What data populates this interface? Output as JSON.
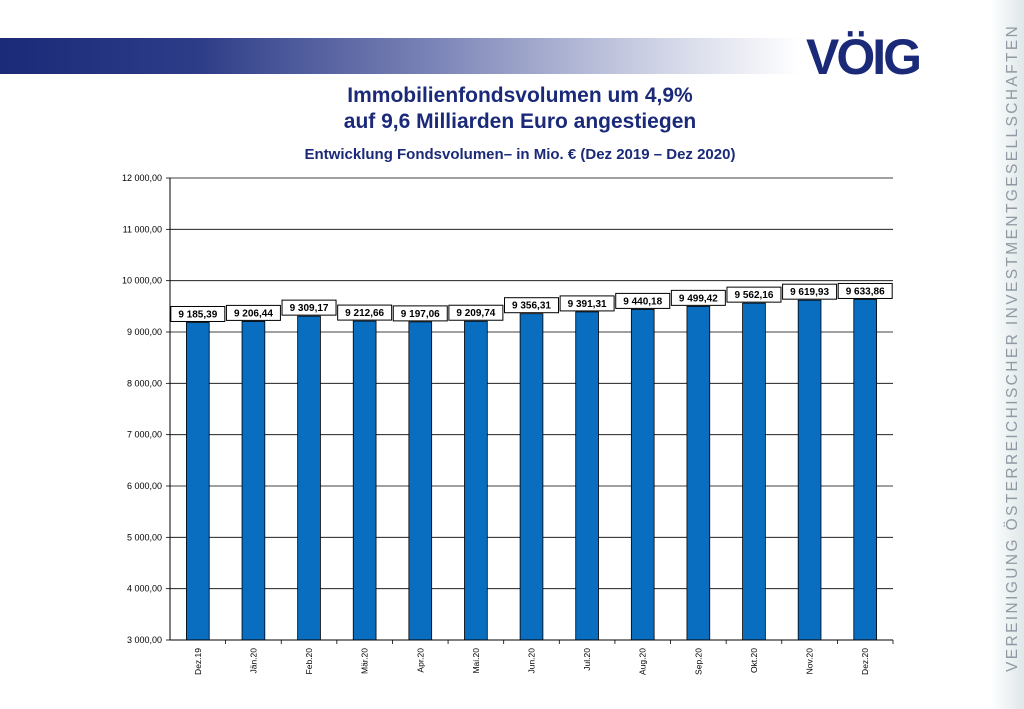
{
  "logo": {
    "text": "VÖIG"
  },
  "sidebar": {
    "text": "VEREINIGUNG ÖSTERREICHISCHER INVESTMENTGESELLSCHAFTEN"
  },
  "title": {
    "line1": "Immobilienfondsvolumen um 4,9%",
    "line2": "auf 9,6 Milliarden Euro angestiegen",
    "subtitle": "Entwicklung Fondsvolumen– in Mio. € (Dez 2019 – Dez 2020)"
  },
  "colors": {
    "bar": "#0a6ec0",
    "header_band": "#1b2a78",
    "logo": "#1b2a78",
    "title": "#1b2a78"
  },
  "chart_data": {
    "type": "bar",
    "categories": [
      "Dez.19",
      "Jän.20",
      "Feb.20",
      "Mär.20",
      "Apr.20",
      "Mai.20",
      "Jun.20",
      "Jul.20",
      "Aug.20",
      "Sep.20",
      "Okt.20",
      "Nov.20",
      "Dez.20"
    ],
    "values": [
      9185.39,
      9206.44,
      9309.17,
      9212.66,
      9197.06,
      9209.74,
      9356.31,
      9391.31,
      9440.18,
      9499.42,
      9562.16,
      9619.93,
      9633.86
    ],
    "value_labels": [
      "9 185,39",
      "9 206,44",
      "9 309,17",
      "9 212,66",
      "9 197,06",
      "9 209,74",
      "9 356,31",
      "9 391,31",
      "9 440,18",
      "9 499,42",
      "9 562,16",
      "9 619,93",
      "9 633,86"
    ],
    "ylim": [
      3000,
      12000
    ],
    "yticks": [
      3000,
      4000,
      5000,
      6000,
      7000,
      8000,
      9000,
      10000,
      11000,
      12000
    ],
    "ytick_labels": [
      "3 000,00",
      "4 000,00",
      "5 000,00",
      "6 000,00",
      "7 000,00",
      "8 000,00",
      "9 000,00",
      "10 000,00",
      "11 000,00",
      "12 000,00"
    ],
    "grid": true,
    "legend": "none"
  }
}
